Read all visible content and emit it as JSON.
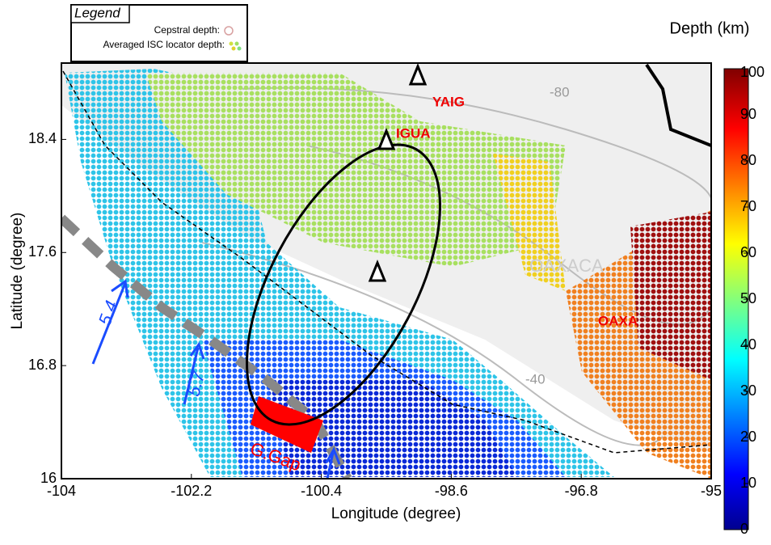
{
  "legend": {
    "title": "Legend",
    "cepstral": "Cepstral depth:",
    "isc": "Averaged ISC locator depth:"
  },
  "axes": {
    "x_label": "Longitude (degree)",
    "y_label": "Latitude (degree)",
    "xlim": [
      -104,
      -95
    ],
    "xticks": [
      -104,
      -102.2,
      -100.4,
      -98.6,
      -96.8,
      -95
    ],
    "ylim": [
      16,
      18.94
    ],
    "yticks": [
      16,
      16.8,
      17.6,
      18.4
    ]
  },
  "colorbar": {
    "title": "Depth (km)",
    "lim": [
      0,
      100
    ],
    "ticks": [
      0,
      10,
      20,
      30,
      40,
      50,
      60,
      70,
      80,
      90,
      100
    ]
  },
  "stations": [
    "YAIG",
    "IGUA",
    "OAXA"
  ],
  "annotations": {
    "rate_1": "5.4",
    "rate_2": "5.7",
    "gap": "G.Gap",
    "contour_1": "-80",
    "contour_2": "-40",
    "region": "OAXACA"
  }
}
